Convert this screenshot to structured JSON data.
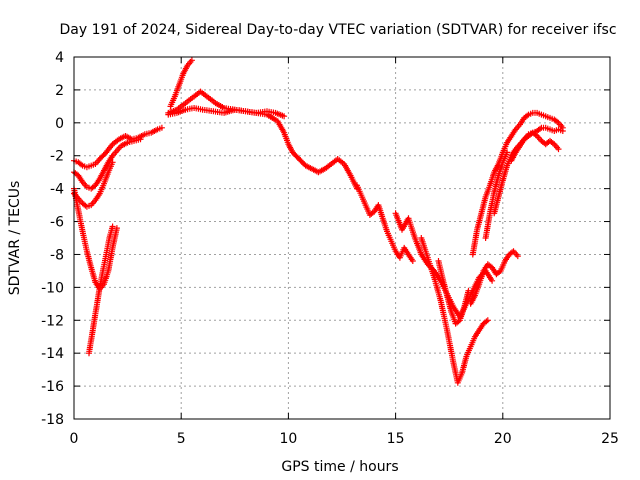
{
  "chart_data": {
    "type": "scatter",
    "title": "Day 191 of 2024, Sidereal Day-to-day VTEC variation (SDTVAR) for receiver ifsc",
    "xlabel": "GPS time / hours",
    "ylabel": "SDTVAR / TECUs",
    "xlim": [
      0,
      25
    ],
    "ylim": [
      -18,
      4
    ],
    "x_ticks": [
      0,
      5,
      10,
      15,
      20,
      25
    ],
    "y_ticks": [
      -18,
      -16,
      -14,
      -12,
      -10,
      -8,
      -6,
      -4,
      -2,
      0,
      2,
      4
    ],
    "grid": true,
    "color": "#ff0000",
    "marker": "plus",
    "series": [
      {
        "x": [
          0.0,
          0.2,
          0.4,
          0.6,
          0.8,
          1.0,
          1.2,
          1.5,
          1.8,
          2.1,
          2.4,
          2.7,
          3.0,
          3.3,
          3.6,
          3.9,
          4.1
        ],
        "y": [
          -2.3,
          -2.4,
          -2.6,
          -2.7,
          -2.6,
          -2.5,
          -2.2,
          -1.8,
          -1.3,
          -1.0,
          -0.8,
          -1.0,
          -0.9,
          -0.7,
          -0.6,
          -0.4,
          -0.3
        ]
      },
      {
        "x": [
          0.0,
          0.2,
          0.4,
          0.6,
          0.8,
          1.0,
          1.2,
          1.4,
          1.6,
          1.8,
          2.0,
          2.2,
          2.5,
          2.8,
          3.1
        ],
        "y": [
          -3.0,
          -3.2,
          -3.6,
          -3.9,
          -4.0,
          -3.8,
          -3.4,
          -2.9,
          -2.4,
          -2.0,
          -1.7,
          -1.4,
          -1.2,
          -1.1,
          -1.0
        ]
      },
      {
        "x": [
          0.0,
          0.2,
          0.4,
          0.6,
          0.8,
          1.0,
          1.2,
          1.4,
          1.6,
          1.8
        ],
        "y": [
          -4.3,
          -4.6,
          -4.9,
          -5.1,
          -5.0,
          -4.7,
          -4.3,
          -3.7,
          -3.0,
          -2.4
        ]
      },
      {
        "x": [
          0.0,
          0.2,
          0.4,
          0.6,
          0.8,
          1.0,
          1.2,
          1.4,
          1.6,
          1.8,
          2.0
        ],
        "y": [
          -4.0,
          -5.3,
          -6.6,
          -7.8,
          -8.8,
          -9.7,
          -10.1,
          -9.8,
          -9.0,
          -7.6,
          -6.4
        ]
      },
      {
        "x": [
          0.7,
          0.8,
          0.9,
          1.0,
          1.1,
          1.2,
          1.35,
          1.5,
          1.65,
          1.8
        ],
        "y": [
          -14.0,
          -13.2,
          -12.4,
          -11.6,
          -10.8,
          -10.0,
          -9.0,
          -8.0,
          -7.0,
          -6.3
        ]
      },
      {
        "x": [
          4.5,
          4.7,
          4.9,
          5.1,
          5.3,
          5.5
        ],
        "y": [
          1.0,
          1.6,
          2.3,
          3.0,
          3.5,
          3.8
        ]
      },
      {
        "x": [
          4.4,
          4.8,
          5.2,
          5.6,
          5.9,
          6.2,
          6.6,
          7.0,
          7.5,
          8.0,
          8.5,
          9.0,
          9.4,
          9.8
        ],
        "y": [
          0.6,
          0.8,
          1.2,
          1.6,
          1.9,
          1.6,
          1.2,
          0.9,
          0.8,
          0.7,
          0.6,
          0.7,
          0.6,
          0.4
        ]
      },
      {
        "x": [
          4.4,
          4.8,
          5.2,
          5.6,
          6.0,
          6.5,
          7.0,
          7.5,
          8.0,
          8.5,
          9.0,
          9.5,
          9.8,
          10.0,
          10.2,
          10.5,
          10.8,
          11.1,
          11.4,
          11.7,
          12.0,
          12.3,
          12.6,
          12.9,
          13.2
        ],
        "y": [
          0.5,
          0.6,
          0.8,
          0.9,
          0.8,
          0.7,
          0.6,
          0.8,
          0.7,
          0.6,
          0.5,
          0.1,
          -0.6,
          -1.3,
          -1.8,
          -2.2,
          -2.6,
          -2.8,
          -3.0,
          -2.8,
          -2.5,
          -2.2,
          -2.5,
          -3.2,
          -4.0
        ]
      },
      {
        "x": [
          13.2,
          13.4,
          13.6,
          13.8,
          14.0,
          14.2,
          14.4,
          14.6,
          14.8,
          15.0,
          15.2,
          15.4,
          15.6,
          15.8
        ],
        "y": [
          -3.8,
          -4.4,
          -5.0,
          -5.6,
          -5.4,
          -5.0,
          -5.8,
          -6.6,
          -7.2,
          -7.8,
          -8.2,
          -7.6,
          -8.0,
          -8.4
        ]
      },
      {
        "x": [
          15.0,
          15.3,
          15.6,
          15.9,
          16.2,
          16.5,
          16.8,
          17.1,
          17.4,
          17.7,
          18.0,
          18.3,
          18.6,
          18.9,
          19.2,
          19.5
        ],
        "y": [
          -5.5,
          -6.5,
          -5.8,
          -7.0,
          -8.0,
          -8.6,
          -9.0,
          -9.6,
          -10.4,
          -11.2,
          -11.8,
          -11.0,
          -10.2,
          -9.4,
          -9.0,
          -9.6
        ]
      },
      {
        "x": [
          16.2,
          16.5,
          16.8,
          17.1,
          17.4,
          17.7,
          17.9,
          18.1,
          18.3,
          18.5,
          18.7,
          18.9,
          19.1,
          19.3
        ],
        "y": [
          -7.0,
          -8.2,
          -9.4,
          -10.8,
          -12.6,
          -14.6,
          -15.8,
          -15.2,
          -14.2,
          -13.6,
          -13.0,
          -12.6,
          -12.2,
          -12.0
        ]
      },
      {
        "x": [
          17.0,
          17.2,
          17.4,
          17.6,
          17.8,
          18.0,
          18.2,
          18.4
        ],
        "y": [
          -8.4,
          -9.5,
          -10.5,
          -11.5,
          -12.2,
          -12.0,
          -11.2,
          -10.2
        ]
      },
      {
        "x": [
          18.5,
          18.7,
          18.9,
          19.1,
          19.3,
          19.5,
          19.7,
          19.9,
          20.1,
          20.3,
          20.5,
          20.7
        ],
        "y": [
          -11.0,
          -10.5,
          -9.8,
          -9.0,
          -8.6,
          -8.8,
          -9.2,
          -9.0,
          -8.4,
          -8.0,
          -7.8,
          -8.1
        ]
      },
      {
        "x": [
          18.6,
          18.8,
          19.0,
          19.2,
          19.4,
          19.6,
          19.8,
          20.0,
          20.2,
          20.4,
          20.6,
          20.8,
          21.0,
          21.2,
          21.4,
          21.6,
          21.8,
          22.0,
          22.2,
          22.4,
          22.6,
          22.8
        ],
        "y": [
          -8.0,
          -6.5,
          -5.5,
          -4.5,
          -3.8,
          -3.0,
          -2.5,
          -1.8,
          -1.2,
          -0.8,
          -0.4,
          -0.1,
          0.3,
          0.5,
          0.6,
          0.6,
          0.5,
          0.4,
          0.3,
          0.2,
          0.0,
          -0.3
        ]
      },
      {
        "x": [
          19.6,
          19.8,
          20.0,
          20.2,
          20.4,
          20.6,
          20.8,
          21.0,
          21.2,
          21.4,
          21.6,
          21.8,
          22.0,
          22.2,
          22.4,
          22.6,
          22.8
        ],
        "y": [
          -5.5,
          -4.5,
          -3.5,
          -2.6,
          -2.0,
          -1.6,
          -1.3,
          -1.0,
          -0.8,
          -0.6,
          -0.5,
          -0.3,
          -0.3,
          -0.4,
          -0.5,
          -0.4,
          -0.5
        ]
      },
      {
        "x": [
          20.4,
          20.6,
          20.8,
          21.0,
          21.2,
          21.4,
          21.6,
          21.8,
          22.0,
          22.2,
          22.4,
          22.6
        ],
        "y": [
          -2.3,
          -1.8,
          -1.4,
          -1.0,
          -0.7,
          -0.6,
          -0.8,
          -1.1,
          -1.3,
          -1.1,
          -1.3,
          -1.6
        ]
      },
      {
        "x": [
          19.2,
          19.4,
          19.6,
          19.8,
          20.0,
          20.2
        ],
        "y": [
          -7.0,
          -5.5,
          -4.2,
          -3.2,
          -2.4,
          -1.8
        ]
      }
    ]
  }
}
